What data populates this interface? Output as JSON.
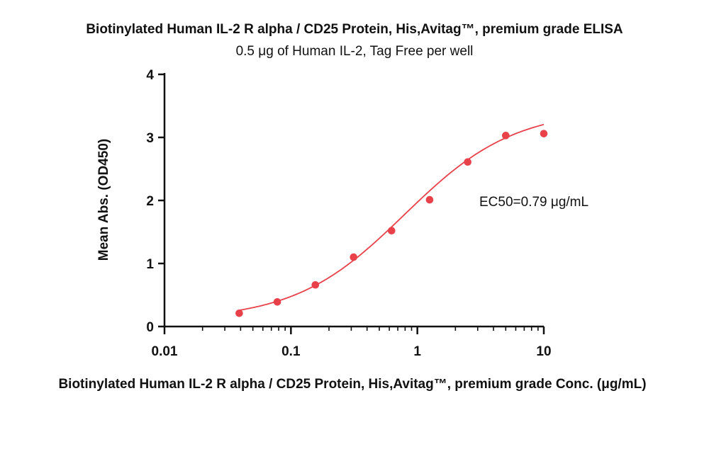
{
  "chart_data": {
    "type": "scatter",
    "title": "Biotinylated Human IL-2 R alpha / CD25 Protein, His,Avitag™, premium grade ELISA",
    "subtitle": "0.5 μg of Human IL-2, Tag Free per well",
    "xlabel": "Biotinylated Human IL-2 R alpha / CD25 Protein, His,Avitag™, premium grade Conc. (μg/mL)",
    "ylabel": "Mean Abs. (OD450)",
    "x_scale": "log",
    "xlim": [
      0.01,
      10
    ],
    "ylim": [
      0,
      4
    ],
    "x_ticks": [
      0.01,
      0.1,
      1,
      10
    ],
    "x_tick_labels": [
      "0.01",
      "0.1",
      "1",
      "10"
    ],
    "y_ticks": [
      0,
      1,
      2,
      3,
      4
    ],
    "y_tick_labels": [
      "0",
      "1",
      "2",
      "3",
      "4"
    ],
    "grid": false,
    "legend": "none",
    "color": "#e8414a",
    "series": [
      {
        "x": [
          0.039,
          0.078,
          0.156,
          0.313,
          0.625,
          1.25,
          2.5,
          5,
          10
        ],
        "y": [
          0.21,
          0.39,
          0.66,
          1.1,
          1.52,
          2.01,
          2.61,
          3.03,
          3.06
        ]
      }
    ],
    "fit": {
      "model": "4PL",
      "bottom": 0.1,
      "top": 3.45,
      "ec50": 0.79,
      "hill": 1.0
    },
    "annotation": "EC50=0.79 μg/mL"
  }
}
